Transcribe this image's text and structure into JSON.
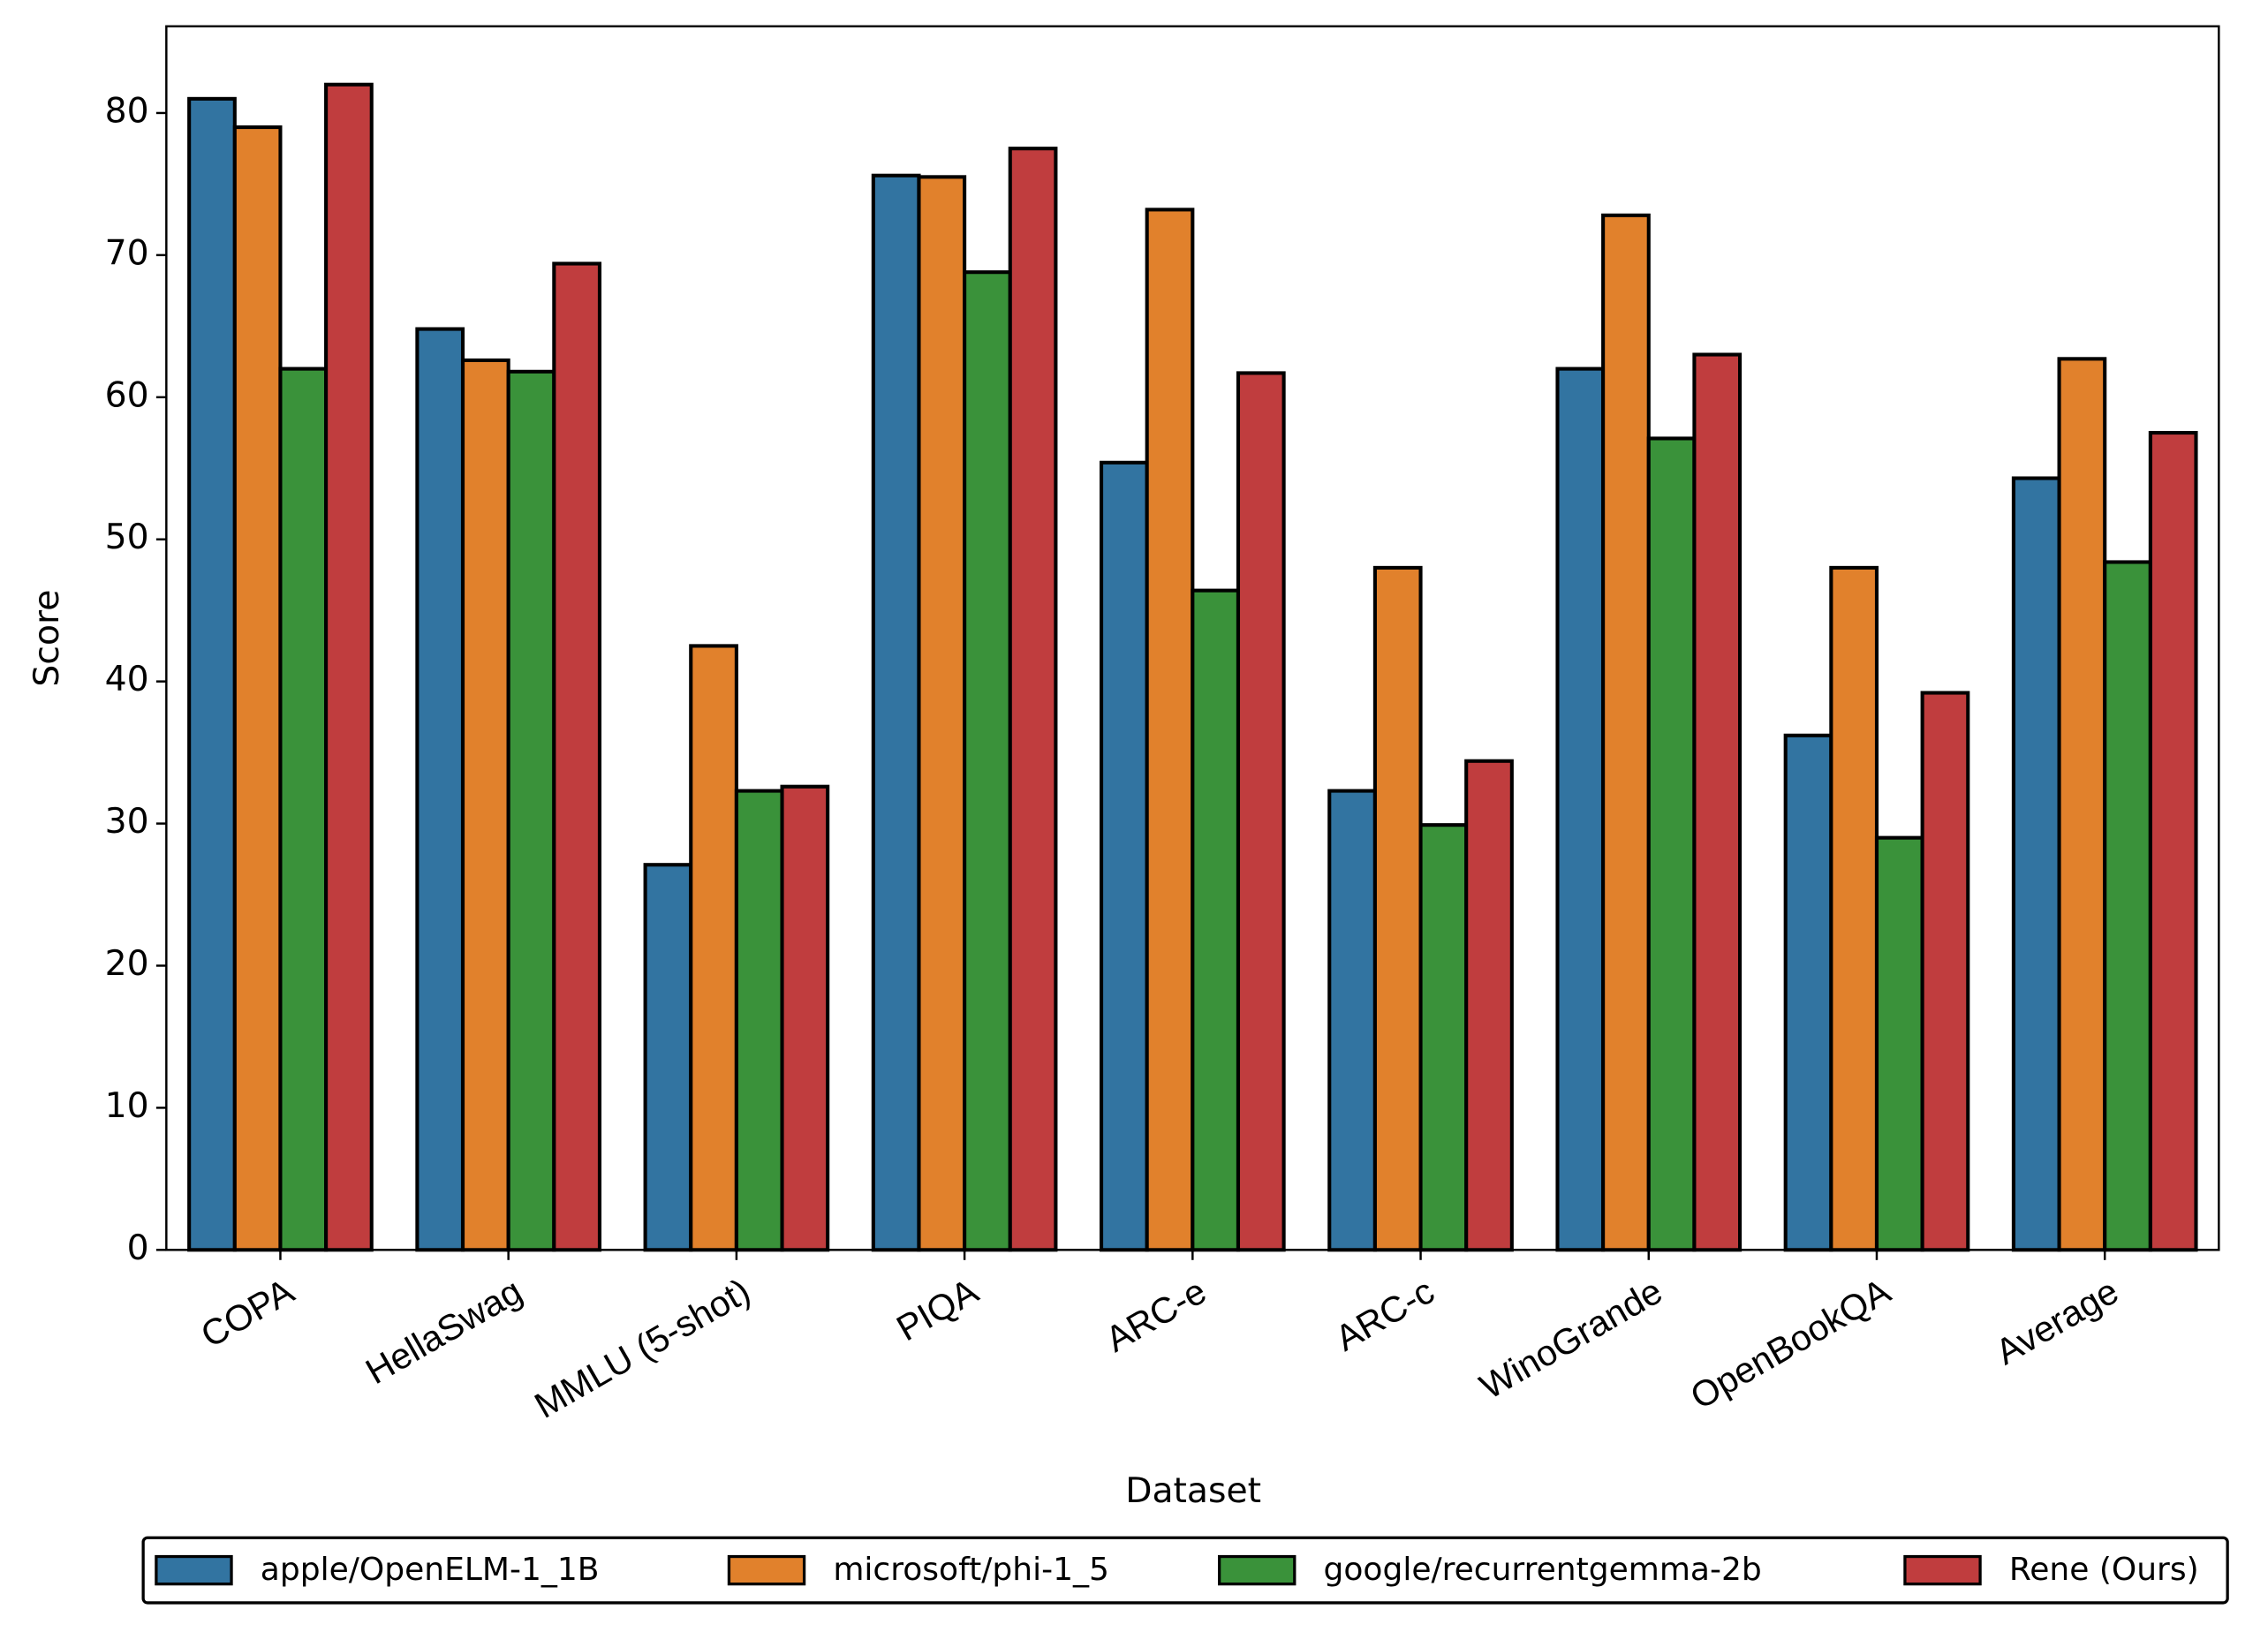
{
  "chart_data": {
    "type": "bar",
    "x_label": "Dataset",
    "y_label": "Score",
    "categories": [
      "COPA",
      "HellaSwag",
      "MMLU (5-shot)",
      "PIQA",
      "ARC-e",
      "ARC-c",
      "WinoGrande",
      "OpenBookQA",
      "Average"
    ],
    "series": [
      {
        "name": "apple/OpenELM-1_1B",
        "color": "#3274a1",
        "values": [
          81,
          64.8,
          27.1,
          75.6,
          55.4,
          32.3,
          62,
          36.2,
          54.3
        ]
      },
      {
        "name": "microsoft/phi-1_5",
        "color": "#e1812c",
        "values": [
          79,
          62.6,
          42.5,
          75.5,
          73.2,
          48,
          72.8,
          48,
          62.7
        ]
      },
      {
        "name": "google/recurrentgemma-2b",
        "color": "#3a923a",
        "values": [
          62,
          61.8,
          32.3,
          68.8,
          46.4,
          29.9,
          57.1,
          29,
          48.4
        ]
      },
      {
        "name": "Rene (Ours)",
        "color": "#c03d3e",
        "values": [
          82,
          69.4,
          32.6,
          77.5,
          61.7,
          34.4,
          63,
          39.2,
          57.5
        ]
      }
    ],
    "ylim": [
      0,
      86.1
    ],
    "yticks": [
      0,
      10,
      20,
      30,
      40,
      50,
      60,
      70,
      80
    ],
    "grid": false,
    "legend": "bottom",
    "edge_color": "#000000"
  }
}
